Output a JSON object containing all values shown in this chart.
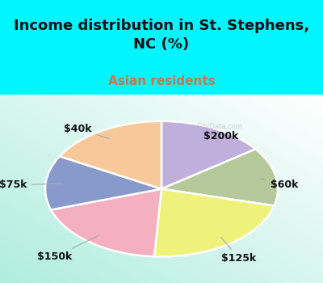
{
  "title": "Income distribution in St. Stephens,\nNC (%)",
  "subtitle": "Asian residents",
  "title_color": "#111111",
  "subtitle_color": "#cc7744",
  "bg_cyan": "#00f5ff",
  "labels": [
    "$200k",
    "$60k",
    "$125k",
    "$150k",
    "$75k",
    "$40k"
  ],
  "values": [
    15,
    14,
    22,
    19,
    13,
    17
  ],
  "colors": [
    "#c0aedd",
    "#b5c99a",
    "#eef27a",
    "#f4afc0",
    "#8899cc",
    "#f7c99a"
  ],
  "label_color": "#111111",
  "label_fontsize": 9,
  "start_angle": 90,
  "title_fontsize": 13,
  "subtitle_fontsize": 11
}
